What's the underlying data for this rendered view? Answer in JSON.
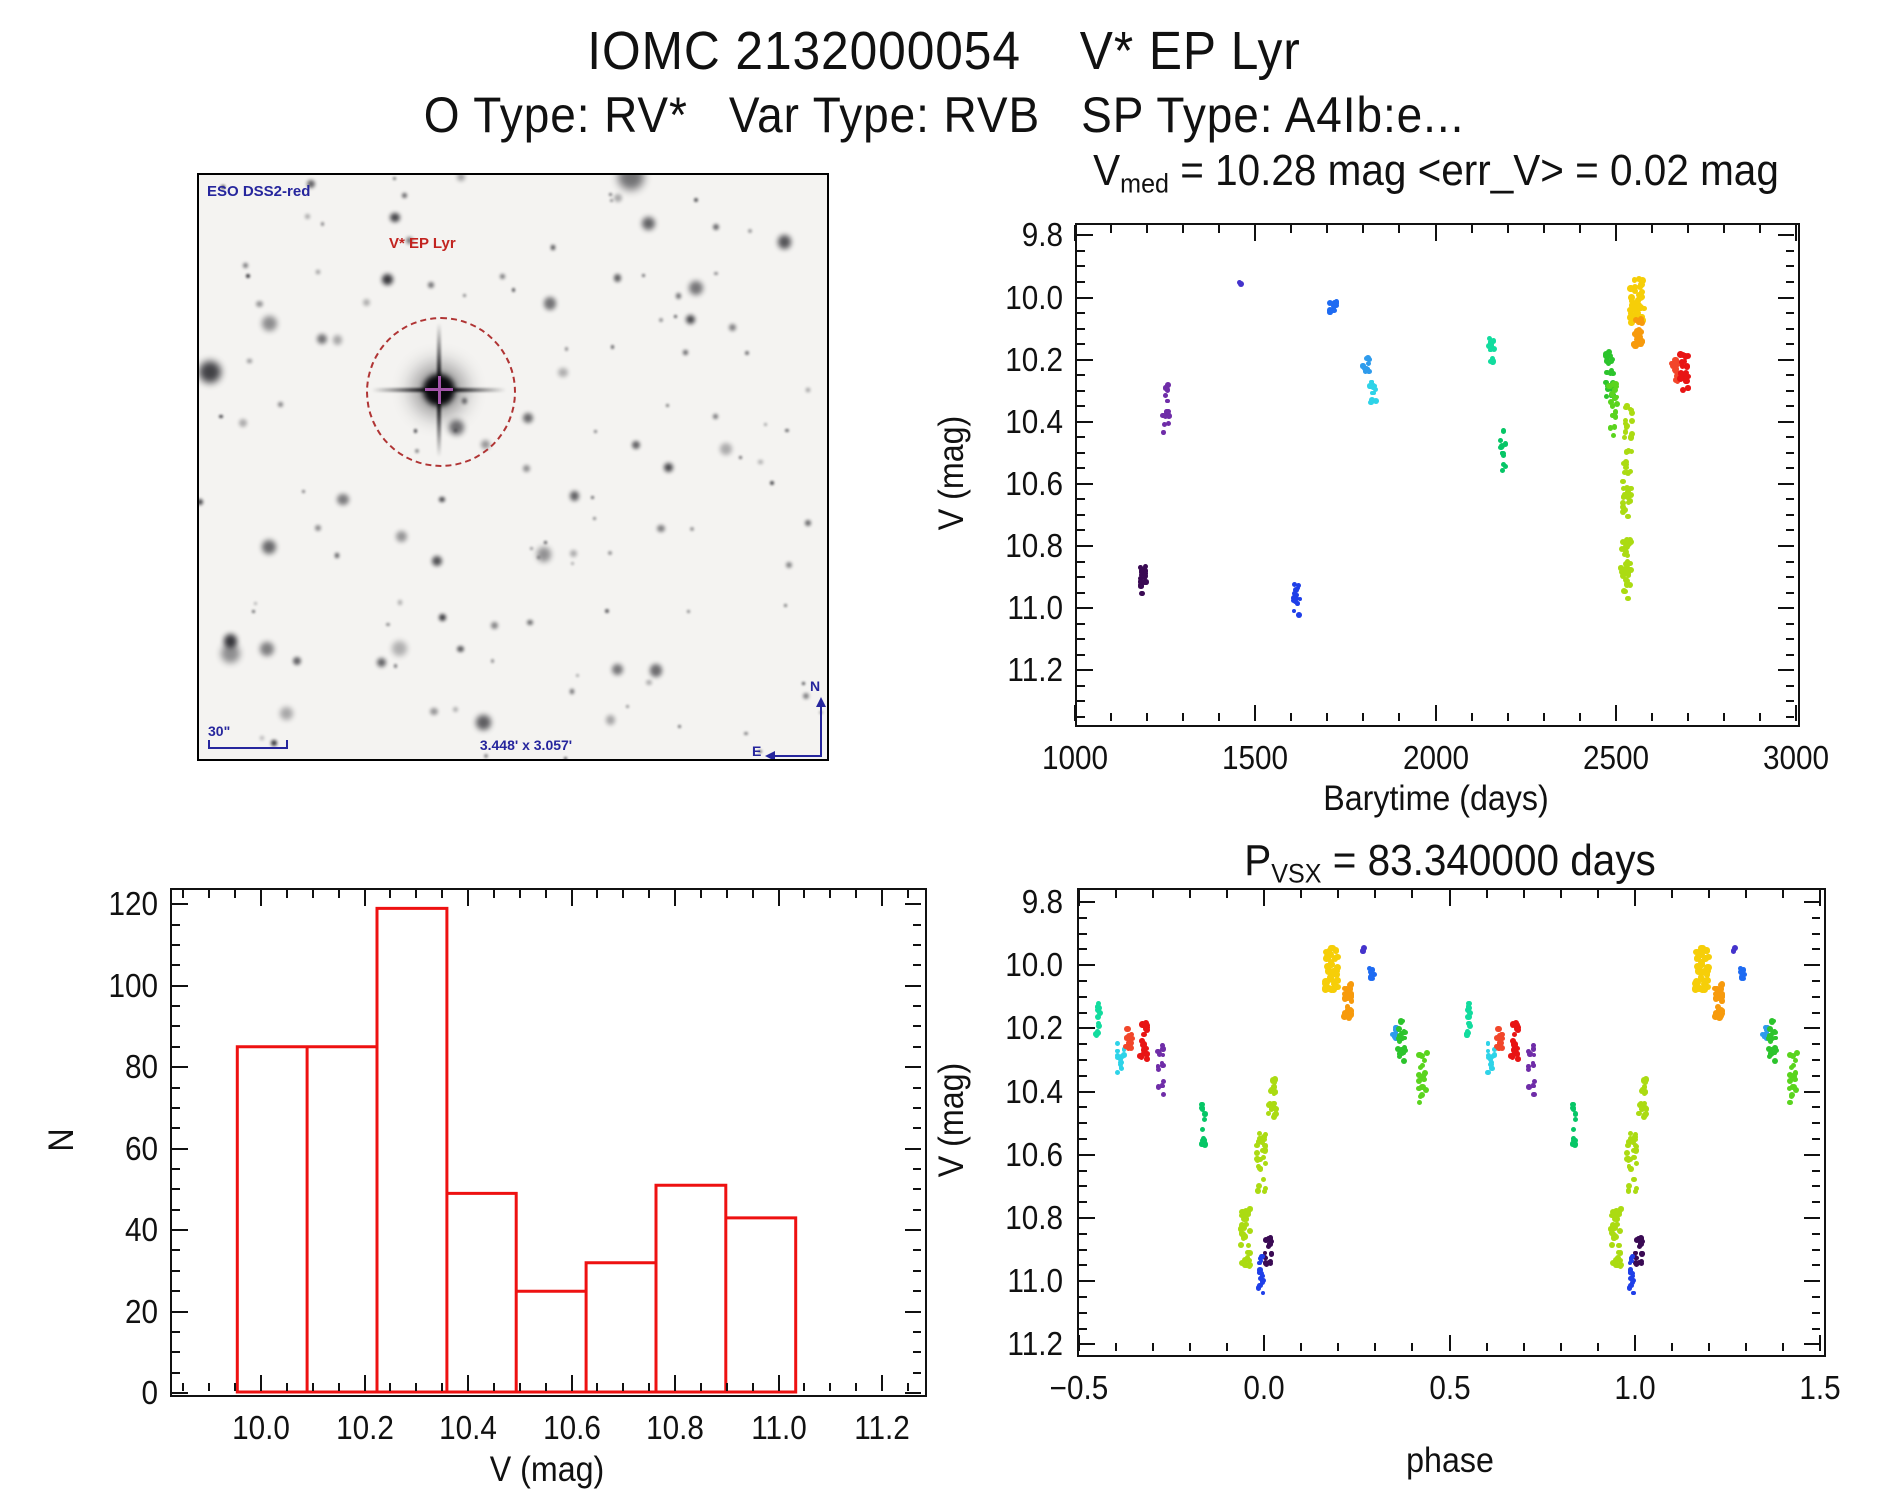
{
  "page": {
    "title": "IOMC 2132000054    V* EP Lyr",
    "subtitle": "O Type: RV*   Var Type: RVB   SP Type: A4Ib:e..."
  },
  "finder": {
    "survey_label": "ESO DSS2-red",
    "target_label": "V* EP Lyr",
    "scale_label": "30\"",
    "fov_label": "3.448' x 3.057'",
    "compass_n": "N",
    "compass_e": "E",
    "annotation_color": "#26269d",
    "target_color": "#c22420",
    "circle_color": "#b03434",
    "cross_color": "#a254a8",
    "star_count": 135,
    "seed": 20540712
  },
  "chart_data": {
    "plots": [
      {
        "id": "lightcurve",
        "type": "scatter",
        "title": {
          "pre": "V",
          "sub": "med",
          "post": " = 10.28 mag <err_V> = 0.02 mag"
        },
        "stats": {
          "v_med_mag": 10.28,
          "err_v_mag": 0.02
        },
        "xlabel": "Barytime (days)",
        "ylabel": "V (mag)",
        "x_key": "barytime",
        "xlim": [
          1000,
          3000
        ],
        "ylim": [
          9.76,
          11.37
        ],
        "grid": false,
        "xticks": {
          "major": [
            1000,
            1500,
            2000,
            2500,
            3000
          ],
          "labels": [
            "1000",
            "1500",
            "2000",
            "2500",
            "3000"
          ],
          "minor_step": 100
        },
        "yticks": {
          "major": [
            9.8,
            10.0,
            10.2,
            10.4,
            10.6,
            10.8,
            11.0,
            11.2
          ],
          "labels": [
            "9.8",
            "10.0",
            "10.2",
            "10.4",
            "10.6",
            "10.8",
            "11.0",
            "11.2"
          ],
          "minor_step": 0.05
        }
      },
      {
        "id": "histogram",
        "type": "bar",
        "xlabel": "V (mag)",
        "ylabel": "N",
        "bar_color": "#ee1111",
        "bin_edges": [
          9.954,
          10.089,
          10.224,
          10.359,
          10.493,
          10.628,
          10.763,
          10.898,
          11.033
        ],
        "counts": [
          85,
          85,
          119,
          49,
          25,
          32,
          51,
          43
        ],
        "xlim": [
          9.824,
          11.279
        ],
        "ylim": [
          124,
          0
        ],
        "grid": false,
        "xticks": {
          "major": [
            10.0,
            10.2,
            10.4,
            10.6,
            10.8,
            11.0,
            11.2
          ],
          "labels": [
            "10.0",
            "10.2",
            "10.4",
            "10.6",
            "10.8",
            "11.0",
            "11.2"
          ],
          "minor_step": 0.05
        },
        "yticks": {
          "major": [
            0,
            20,
            40,
            60,
            80,
            100,
            120
          ],
          "labels": [
            "0",
            "20",
            "40",
            "60",
            "80",
            "100",
            "120"
          ],
          "minor_step": 5
        }
      },
      {
        "id": "phase",
        "type": "scatter",
        "title": {
          "pre": "P",
          "sub": "VSX",
          "post": " = 83.340000 days"
        },
        "period_days": 83.34,
        "xlabel": "phase",
        "ylabel": "V (mag)",
        "x_key": "phase",
        "repeat_offset": 1.0,
        "xlim": [
          -0.505,
          1.505
        ],
        "ylim": [
          9.756,
          11.227
        ],
        "grid": false,
        "xticks": {
          "major": [
            -0.5,
            0.0,
            0.5,
            1.0,
            1.5
          ],
          "labels": [
            "−0.5",
            "0.0",
            "0.5",
            "1.0",
            "1.5"
          ],
          "minor_step": 0.1
        },
        "yticks": {
          "major": [
            9.8,
            10.0,
            10.2,
            10.4,
            10.6,
            10.8,
            11.0,
            11.2
          ],
          "labels": [
            "9.8",
            "10.0",
            "10.2",
            "10.4",
            "10.6",
            "10.8",
            "11.0",
            "11.2"
          ],
          "minor_step": 0.05
        }
      }
    ],
    "epochs": [
      {
        "id": "e1190",
        "color": "#3a0a54",
        "barytime": 1190,
        "phase": 0.011,
        "v_min": 10.86,
        "v_max": 10.96,
        "n": 22,
        "hw": 3.5,
        "dot": 5
      },
      {
        "id": "e1252",
        "color": "#6f2da8",
        "barytime": 1252,
        "phase": -0.279,
        "v_min": 10.25,
        "v_max": 10.44,
        "n": 15,
        "hw": 3,
        "dot": 5
      },
      {
        "id": "e1460",
        "color": "#4433cc",
        "barytime": 1460,
        "phase": 0.267,
        "v_min": 9.945,
        "v_max": 9.965,
        "n": 2,
        "hw": 1.5,
        "dot": 5.5
      },
      {
        "id": "e1615",
        "color": "#1f3fe8",
        "barytime": 1615,
        "phase": -0.011,
        "v_min": 10.92,
        "v_max": 11.04,
        "n": 16,
        "hw": 3,
        "dot": 5
      },
      {
        "id": "e1716",
        "color": "#1e6bf2",
        "barytime": 1716,
        "phase": 0.291,
        "v_min": 10.01,
        "v_max": 10.05,
        "n": 10,
        "hw": 3.5,
        "dot": 5.5
      },
      {
        "id": "e1807",
        "color": "#2e9bec",
        "barytime": 1807,
        "phase": 0.355,
        "v_min": 10.19,
        "v_max": 10.25,
        "n": 12,
        "hw": 3.5,
        "dot": 5
      },
      {
        "id": "e1827",
        "color": "#2ed3e8",
        "barytime": 1827,
        "phase": -0.387,
        "v_min": 10.25,
        "v_max": 10.34,
        "n": 13,
        "hw": 3.5,
        "dot": 5
      },
      {
        "id": "e2155",
        "color": "#12dc9e",
        "barytime": 2155,
        "phase": -0.449,
        "v_min": 10.12,
        "v_max": 10.22,
        "n": 13,
        "hw": 3.5,
        "dot": 5.5
      },
      {
        "id": "e2187",
        "color": "#06c666",
        "barytime": 2187,
        "phase": -0.166,
        "v_min": 10.43,
        "v_max": 10.57,
        "n": 11,
        "hw": 3,
        "dot": 5.5
      },
      {
        "id": "e2484",
        "color": "#2cc42c",
        "barytime": 2484,
        "phase": 0.372,
        "v_min": 10.17,
        "v_max": 10.32,
        "n": 24,
        "hw": 4,
        "dot": 5.5
      },
      {
        "id": "e2492",
        "color": "#5ad41e",
        "barytime": 2492,
        "phase": 0.428,
        "v_min": 10.27,
        "v_max": 10.45,
        "n": 20,
        "hw": 4,
        "dot": 5.5
      },
      {
        "id": "e2534",
        "color": "#abdb12",
        "barytime": 2534,
        "phase": 0.022,
        "v_min": 10.35,
        "v_max": 10.5,
        "n": 18,
        "hw": 4,
        "dot": 5.5
      },
      {
        "id": "e2531",
        "color": "#abdb12",
        "barytime": 2531,
        "phase": -0.008,
        "v_min": 10.53,
        "v_max": 10.72,
        "n": 28,
        "hw": 4.5,
        "dot": 5.5
      },
      {
        "id": "e2528",
        "color": "#abdb12",
        "barytime": 2528,
        "phase": -0.051,
        "v_min": 10.77,
        "v_max": 10.97,
        "n": 32,
        "hw": 5,
        "dot": 6
      },
      {
        "id": "e2559",
        "color": "#f6ce08",
        "barytime": 2559,
        "phase": 0.18,
        "v_min": 9.94,
        "v_max": 10.08,
        "n": 40,
        "hw": 7,
        "dot": 6.5
      },
      {
        "id": "e2563",
        "color": "#f79a0c",
        "barytime": 2563,
        "phase": 0.227,
        "v_min": 10.06,
        "v_max": 10.17,
        "n": 24,
        "hw": 4,
        "dot": 6
      },
      {
        "id": "e2665",
        "color": "#f2462a",
        "barytime": 2665,
        "phase": -0.365,
        "v_min": 10.2,
        "v_max": 10.27,
        "n": 13,
        "hw": 3.5,
        "dot": 6
      },
      {
        "id": "e2690",
        "color": "#e81414",
        "barytime": 2690,
        "phase": -0.325,
        "v_min": 10.18,
        "v_max": 10.3,
        "n": 20,
        "hw": 4,
        "dot": 6
      }
    ]
  }
}
